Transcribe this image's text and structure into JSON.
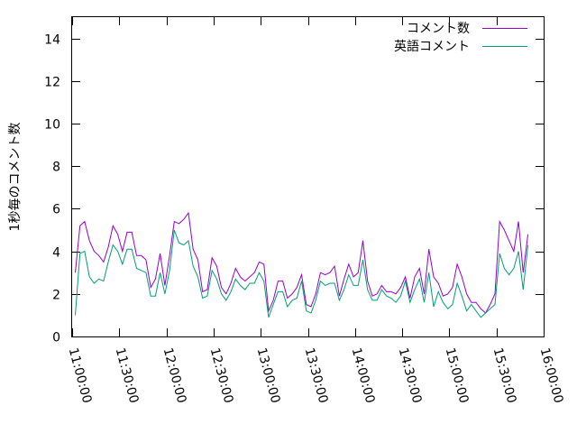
{
  "chart_data": {
    "type": "line",
    "title": "",
    "xlabel": "",
    "ylabel": "1秒毎のコメント数",
    "xlim_minutes": [
      0,
      300
    ],
    "ylim": [
      0,
      15
    ],
    "x_tick_labels": [
      "11:00:00",
      "11:30:00",
      "12:00:00",
      "12:30:00",
      "13:00:00",
      "13:30:00",
      "14:00:00",
      "14:30:00",
      "15:00:00",
      "15:30:00",
      "16:00:00"
    ],
    "y_ticks": [
      0,
      2,
      4,
      6,
      8,
      10,
      12,
      14
    ],
    "y_tick_labels": [
      "0",
      "2",
      "4",
      "6",
      "8",
      "10",
      "12",
      "14"
    ],
    "grid": false,
    "legend_position": "top-right",
    "series": [
      {
        "name": "コメント数",
        "color": "#9400d3",
        "x": [
          2,
          5,
          8,
          11,
          14,
          17,
          20,
          23,
          26,
          29,
          32,
          35,
          38,
          41,
          44,
          47,
          50,
          53,
          56,
          59,
          62,
          65,
          68,
          71,
          74,
          77,
          80,
          83,
          86,
          89,
          92,
          95,
          98,
          101,
          104,
          107,
          110,
          113,
          116,
          119,
          122,
          125,
          128,
          131,
          134,
          137,
          140,
          143,
          146,
          149,
          152,
          155,
          158,
          161,
          164,
          167,
          170,
          173,
          176,
          179,
          182,
          185,
          188,
          191,
          194,
          197,
          200,
          203,
          206,
          209,
          212,
          215,
          218,
          221,
          224,
          227,
          230,
          233,
          236,
          239,
          242,
          245,
          248,
          251,
          254,
          257,
          260,
          263,
          266,
          269,
          272,
          275,
          278,
          281,
          284,
          287,
          290
        ],
        "values": [
          3.0,
          5.2,
          5.4,
          4.5,
          4.0,
          3.8,
          3.5,
          4.2,
          5.2,
          4.8,
          4.0,
          4.9,
          4.9,
          3.8,
          3.8,
          3.6,
          2.3,
          2.7,
          3.9,
          2.4,
          3.8,
          5.4,
          5.3,
          5.5,
          5.8,
          4.1,
          3.6,
          2.1,
          2.2,
          3.7,
          3.3,
          2.3,
          2.0,
          2.5,
          3.2,
          2.8,
          2.6,
          2.8,
          3.0,
          3.5,
          3.4,
          1.2,
          1.7,
          2.6,
          2.6,
          1.8,
          2.0,
          2.3,
          2.9,
          1.5,
          1.4,
          2.0,
          3.0,
          2.9,
          3.0,
          3.3,
          1.9,
          2.7,
          3.4,
          2.8,
          3.0,
          4.5,
          2.6,
          1.9,
          2.0,
          2.4,
          2.1,
          2.1,
          2.0,
          2.3,
          2.8,
          1.8,
          2.8,
          3.2,
          2.0,
          4.1,
          2.8,
          2.5,
          1.9,
          2.0,
          2.3,
          3.4,
          2.8,
          2.0,
          1.6,
          1.6,
          1.3,
          1.1,
          1.5,
          2.0,
          5.4,
          5.0,
          4.5,
          4.0,
          5.4,
          3.0,
          4.8
        ]
      },
      {
        "name": "英語コメント",
        "color": "#009e73",
        "x": [
          2,
          5,
          8,
          11,
          14,
          17,
          20,
          23,
          26,
          29,
          32,
          35,
          38,
          41,
          44,
          47,
          50,
          53,
          56,
          59,
          62,
          65,
          68,
          71,
          74,
          77,
          80,
          83,
          86,
          89,
          92,
          95,
          98,
          101,
          104,
          107,
          110,
          113,
          116,
          119,
          122,
          125,
          128,
          131,
          134,
          137,
          140,
          143,
          146,
          149,
          152,
          155,
          158,
          161,
          164,
          167,
          170,
          173,
          176,
          179,
          182,
          185,
          188,
          191,
          194,
          197,
          200,
          203,
          206,
          209,
          212,
          215,
          218,
          221,
          224,
          227,
          230,
          233,
          236,
          239,
          242,
          245,
          248,
          251,
          254,
          257,
          260,
          263,
          266,
          269,
          272,
          275,
          278,
          281,
          284,
          287,
          290
        ],
        "values": [
          1.0,
          3.9,
          4.0,
          2.8,
          2.5,
          2.7,
          2.6,
          3.5,
          4.3,
          4.0,
          3.4,
          4.1,
          4.1,
          3.2,
          3.1,
          3.0,
          1.9,
          1.9,
          3.0,
          2.0,
          3.1,
          5.0,
          4.4,
          4.3,
          4.5,
          3.3,
          2.8,
          1.8,
          1.9,
          3.1,
          2.7,
          2.0,
          1.7,
          2.1,
          2.7,
          2.4,
          2.2,
          2.5,
          2.5,
          3.0,
          2.6,
          0.9,
          1.5,
          2.1,
          2.1,
          1.4,
          1.7,
          1.8,
          2.6,
          1.2,
          1.1,
          1.7,
          2.6,
          2.4,
          2.5,
          2.5,
          1.7,
          2.2,
          2.9,
          2.4,
          2.4,
          3.6,
          2.2,
          1.7,
          1.7,
          2.2,
          1.9,
          1.8,
          1.6,
          1.9,
          2.6,
          1.6,
          2.2,
          2.7,
          1.6,
          3.0,
          1.4,
          2.1,
          1.6,
          1.3,
          1.5,
          2.5,
          1.9,
          1.2,
          1.5,
          1.2,
          0.9,
          1.1,
          1.3,
          1.5,
          3.9,
          3.2,
          2.9,
          3.2,
          4.0,
          2.2,
          4.3
        ]
      }
    ]
  }
}
